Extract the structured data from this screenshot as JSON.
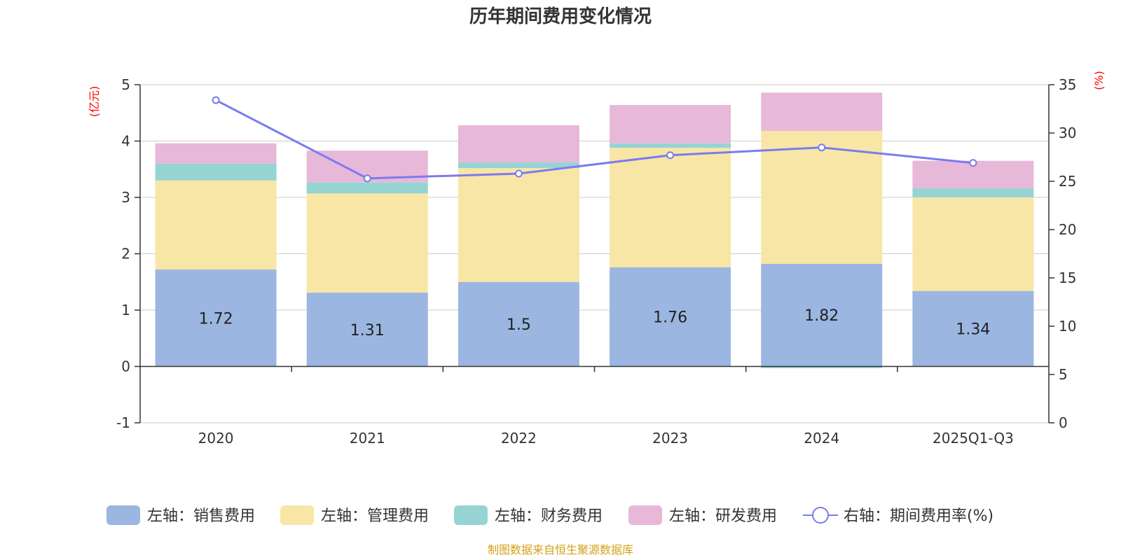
{
  "title": "历年期间费用变化情况",
  "source": "制图数据来自恒生聚源数据库",
  "chart_data": {
    "type": "bar",
    "stacked": true,
    "title": "历年期间费用变化情况",
    "categories": [
      "2020",
      "2021",
      "2022",
      "2023",
      "2024",
      "2025Q1-Q3"
    ],
    "left_axis": {
      "unit": "(亿元)",
      "ylim": [
        -1,
        5
      ],
      "ticks": [
        -1,
        0,
        1,
        2,
        3,
        4,
        5
      ]
    },
    "right_axis": {
      "unit": "(%)",
      "ylim": [
        0,
        35
      ],
      "ticks": [
        0,
        5,
        10,
        15,
        20,
        25,
        30,
        35
      ]
    },
    "series": [
      {
        "name": "左轴：销售费用",
        "axis": "left",
        "kind": "bar",
        "color": "#9bb6e0",
        "values": [
          1.72,
          1.31,
          1.5,
          1.76,
          1.82,
          1.34
        ],
        "show_labels": true
      },
      {
        "name": "左轴：管理费用",
        "axis": "left",
        "kind": "bar",
        "color": "#f8e6a6",
        "values": [
          1.58,
          1.76,
          2.02,
          2.12,
          2.36,
          1.66
        ]
      },
      {
        "name": "左轴：财务费用",
        "axis": "left",
        "kind": "bar",
        "color": "#96d4d4",
        "values": [
          0.3,
          0.2,
          0.1,
          0.08,
          -0.03,
          0.16
        ]
      },
      {
        "name": "左轴：研发费用",
        "axis": "left",
        "kind": "bar",
        "color": "#e8b8d8",
        "values": [
          0.36,
          0.56,
          0.66,
          0.68,
          0.68,
          0.49
        ]
      },
      {
        "name": "右轴：期间费用率(%)",
        "axis": "right",
        "kind": "line",
        "color": "#7b7bef",
        "values": [
          33.4,
          25.3,
          25.8,
          27.7,
          28.5,
          26.9
        ]
      }
    ],
    "grid": true,
    "legend": "bottom"
  }
}
